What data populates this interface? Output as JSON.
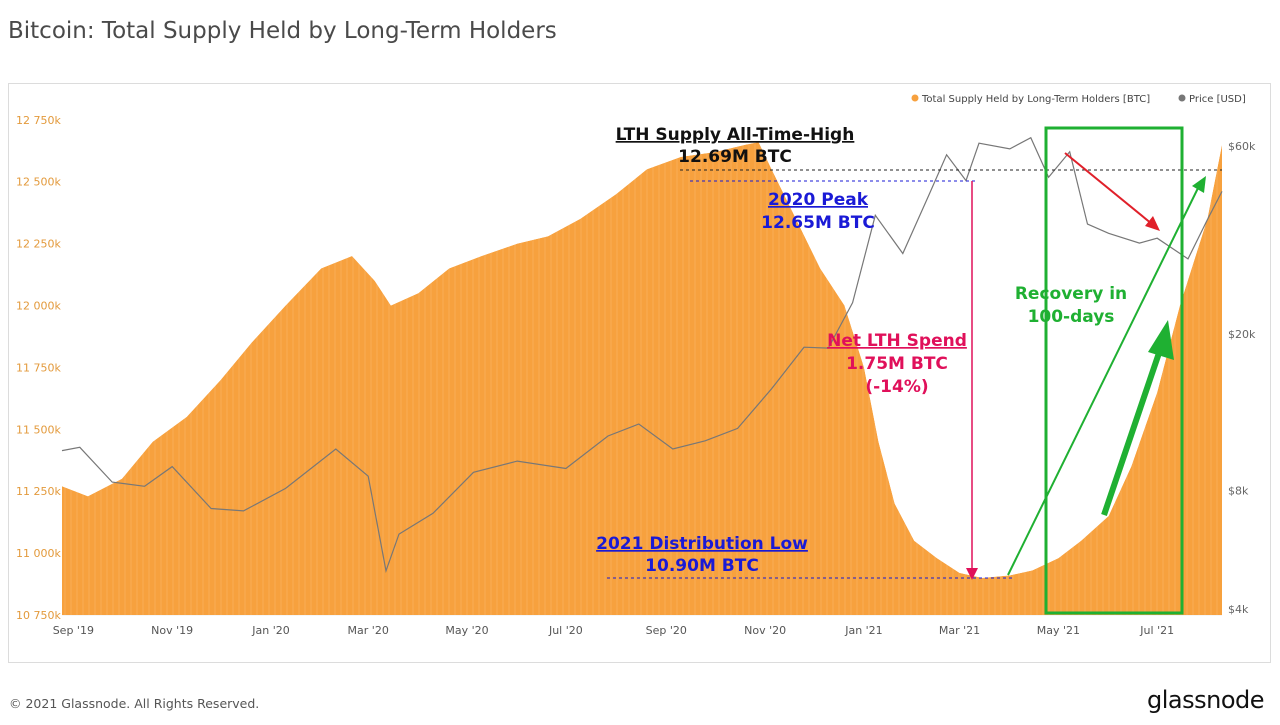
{
  "title": "Bitcoin: Total Supply Held by Long-Term Holders",
  "footer": "© 2021 Glassnode. All Rights Reserved.",
  "brand": "glassnode",
  "watermark": "glassnode",
  "colors": {
    "supply": "#f7a13e",
    "price": "#777777",
    "peak": "#1a1ad6",
    "spend": "#e0105a",
    "recovery": "#1fb032",
    "arrow_red": "#e0202a"
  },
  "chart_data": {
    "type": "area",
    "legend": {
      "position": "top-right",
      "items": [
        {
          "label": "Total Supply Held by Long-Term Holders [BTC]",
          "color": "#f7a13e"
        },
        {
          "label": "Price [USD]",
          "color": "#777777"
        }
      ]
    },
    "x_ticks": [
      "Sep '19",
      "Nov '19",
      "Jan '20",
      "Mar '20",
      "May '20",
      "Jul '20",
      "Sep '20",
      "Nov '20",
      "Jan '21",
      "Mar '21",
      "May '21",
      "Jul '21"
    ],
    "y_left": {
      "ticks": [
        "10 750k",
        "11 000k",
        "11 250k",
        "11 500k",
        "11 750k",
        "12 000k",
        "12 250k",
        "12 500k",
        "12 750k"
      ],
      "range": [
        10750000,
        12830000
      ]
    },
    "y_right": {
      "ticks": [
        "$4k",
        "$8k",
        "$20k",
        "$60k"
      ],
      "scale": "log"
    },
    "series": [
      {
        "name": "Total Supply Held by Long-Term Holders [BTC]",
        "x": [
          "2019-08-25",
          "2019-09-10",
          "2019-10-01",
          "2019-10-20",
          "2019-11-10",
          "2019-12-01",
          "2019-12-20",
          "2020-01-10",
          "2020-02-01",
          "2020-02-20",
          "2020-03-05",
          "2020-03-15",
          "2020-04-01",
          "2020-04-20",
          "2020-05-10",
          "2020-06-01",
          "2020-06-20",
          "2020-07-10",
          "2020-08-01",
          "2020-08-20",
          "2020-09-10",
          "2020-10-01",
          "2020-10-20",
          "2020-10-28",
          "2020-11-05",
          "2020-11-20",
          "2020-12-05",
          "2020-12-20",
          "2021-01-01",
          "2021-01-10",
          "2021-01-20",
          "2021-02-01",
          "2021-02-15",
          "2021-03-01",
          "2021-03-15",
          "2021-04-01",
          "2021-04-15",
          "2021-05-01",
          "2021-05-15",
          "2021-06-01",
          "2021-06-15",
          "2021-07-01",
          "2021-07-15",
          "2021-08-01",
          "2021-08-10"
        ],
        "y": [
          11270000,
          11230000,
          11300000,
          11450000,
          11550000,
          11700000,
          11850000,
          12000000,
          12150000,
          12200000,
          12100000,
          12000000,
          12050000,
          12150000,
          12200000,
          12250000,
          12280000,
          12350000,
          12450000,
          12550000,
          12600000,
          12620000,
          12650000,
          12660000,
          12550000,
          12350000,
          12150000,
          12000000,
          11750000,
          11450000,
          11200000,
          11050000,
          10980000,
          10920000,
          10900000,
          10910000,
          10930000,
          10980000,
          11050000,
          11150000,
          11350000,
          11650000,
          12000000,
          12350000,
          12650000
        ]
      },
      {
        "name": "Price [USD]",
        "x": [
          "2019-08-25",
          "2019-09-05",
          "2019-09-25",
          "2019-10-15",
          "2019-11-01",
          "2019-11-25",
          "2019-12-15",
          "2020-01-10",
          "2020-02-10",
          "2020-03-01",
          "2020-03-12",
          "2020-03-20",
          "2020-04-10",
          "2020-05-05",
          "2020-06-01",
          "2020-07-01",
          "2020-07-27",
          "2020-08-15",
          "2020-09-05",
          "2020-09-25",
          "2020-10-15",
          "2020-11-05",
          "2020-11-25",
          "2020-12-10",
          "2020-12-25",
          "2021-01-08",
          "2021-01-25",
          "2021-02-10",
          "2021-02-21",
          "2021-03-05",
          "2021-03-13",
          "2021-04-01",
          "2021-04-14",
          "2021-04-25",
          "2021-05-08",
          "2021-05-19",
          "2021-06-01",
          "2021-06-20",
          "2021-07-01",
          "2021-07-20",
          "2021-08-01",
          "2021-08-10"
        ],
        "y": [
          10100,
          10300,
          8400,
          8200,
          9200,
          7200,
          7100,
          8100,
          10200,
          8700,
          5000,
          6200,
          7000,
          8900,
          9500,
          9100,
          11000,
          11800,
          10200,
          10700,
          11500,
          14500,
          18500,
          18400,
          24000,
          40000,
          32000,
          45000,
          57000,
          49000,
          61000,
          59000,
          63000,
          50000,
          58000,
          38000,
          36000,
          34000,
          35000,
          31000,
          39000,
          46000
        ]
      }
    ],
    "annotations": [
      {
        "text": "LTH Supply All-Time-High",
        "value": "12.69M BTC"
      },
      {
        "text": "2020 Peak",
        "value": "12.65M BTC"
      },
      {
        "text": "Net LTH Spend",
        "value": "1.75M BTC",
        "extra": "(-14%)"
      },
      {
        "text": "2021 Distribution Low",
        "value": "10.90M BTC"
      },
      {
        "text": "Recovery in",
        "value": "100-days"
      }
    ]
  }
}
